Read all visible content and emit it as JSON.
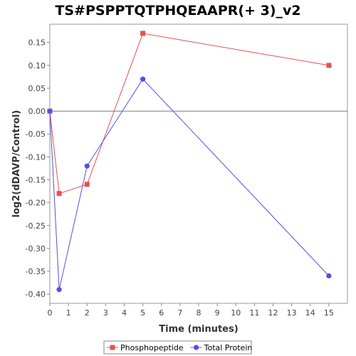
{
  "chart_data": {
    "type": "line",
    "title": "TS#PSPPTQTPHQEAAPR(+ 3)_v2",
    "xlabel": "Time (minutes)",
    "ylabel": "log2(dDAVP/Control)",
    "xlim": [
      0,
      16
    ],
    "ylim": [
      -0.42,
      0.19
    ],
    "x_ticks": [
      0,
      1,
      2,
      3,
      4,
      5,
      6,
      7,
      8,
      9,
      10,
      11,
      12,
      13,
      14,
      15
    ],
    "y_ticks": [
      -0.4,
      -0.35,
      -0.3,
      -0.25,
      -0.2,
      -0.15,
      -0.1,
      -0.05,
      0.0,
      0.05,
      0.1,
      0.15
    ],
    "zero_line": true,
    "grid": false,
    "legend_position": "bottom",
    "series": [
      {
        "name": "Phosphopeptide",
        "color": "#e8504f",
        "marker": "square",
        "x": [
          0,
          0.5,
          2,
          5,
          15
        ],
        "y": [
          0.0,
          -0.18,
          -0.16,
          0.17,
          0.1
        ]
      },
      {
        "name": "Total Protein",
        "color": "#5050e8",
        "marker": "circle",
        "x": [
          0,
          0.5,
          2,
          5,
          15
        ],
        "y": [
          0.0,
          -0.39,
          -0.12,
          0.07,
          -0.36
        ]
      }
    ]
  }
}
